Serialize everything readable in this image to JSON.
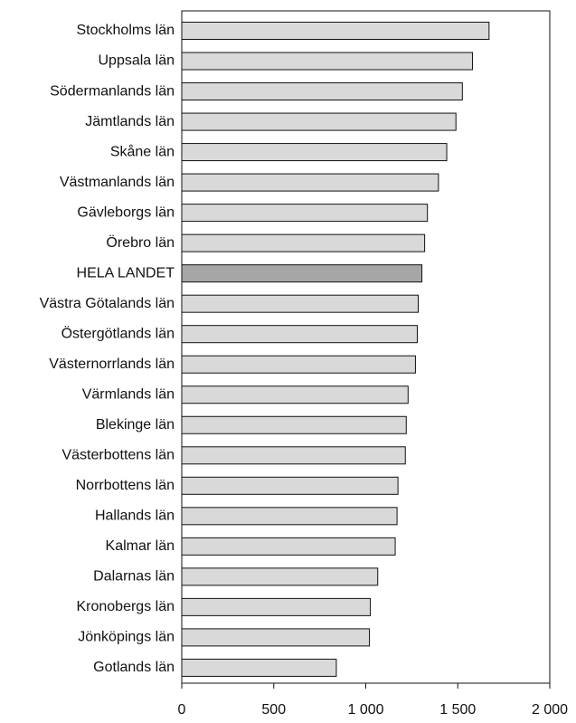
{
  "chart_data": {
    "type": "hbar",
    "categories": [
      "Stockholms län",
      "Uppsala län",
      "Södermanlands län",
      "Jämtlands län",
      "Skåne län",
      "Västmanlands län",
      "Gävleborgs län",
      "Örebro län",
      "HELA LANDET",
      "Västra Götalands län",
      "Östergötlands län",
      "Västernorrlands län",
      "Värmlands län",
      "Blekinge län",
      "Västerbottens län",
      "Norrbottens län",
      "Hallands län",
      "Kalmar län",
      "Dalarnas län",
      "Kronobergs län",
      "Jönköpings län",
      "Gotlands län"
    ],
    "values": [
      1670,
      1580,
      1525,
      1490,
      1440,
      1395,
      1335,
      1320,
      1305,
      1285,
      1280,
      1270,
      1230,
      1220,
      1215,
      1175,
      1170,
      1160,
      1065,
      1025,
      1020,
      840
    ],
    "colors": [
      "#d9d9d9",
      "#d9d9d9",
      "#d9d9d9",
      "#d9d9d9",
      "#d9d9d9",
      "#d9d9d9",
      "#d9d9d9",
      "#d9d9d9",
      "#a6a6a6",
      "#d9d9d9",
      "#d9d9d9",
      "#d9d9d9",
      "#d9d9d9",
      "#d9d9d9",
      "#d9d9d9",
      "#d9d9d9",
      "#d9d9d9",
      "#d9d9d9",
      "#d9d9d9",
      "#d9d9d9",
      "#d9d9d9",
      "#d9d9d9"
    ],
    "xlim": [
      0,
      2000
    ],
    "xticks": [
      0,
      500,
      {
        "value": 1000,
        "label": "1 000"
      },
      {
        "value": 1500,
        "label": "1 500"
      },
      {
        "value": 2000,
        "label": "2 000"
      }
    ],
    "grid": false
  }
}
